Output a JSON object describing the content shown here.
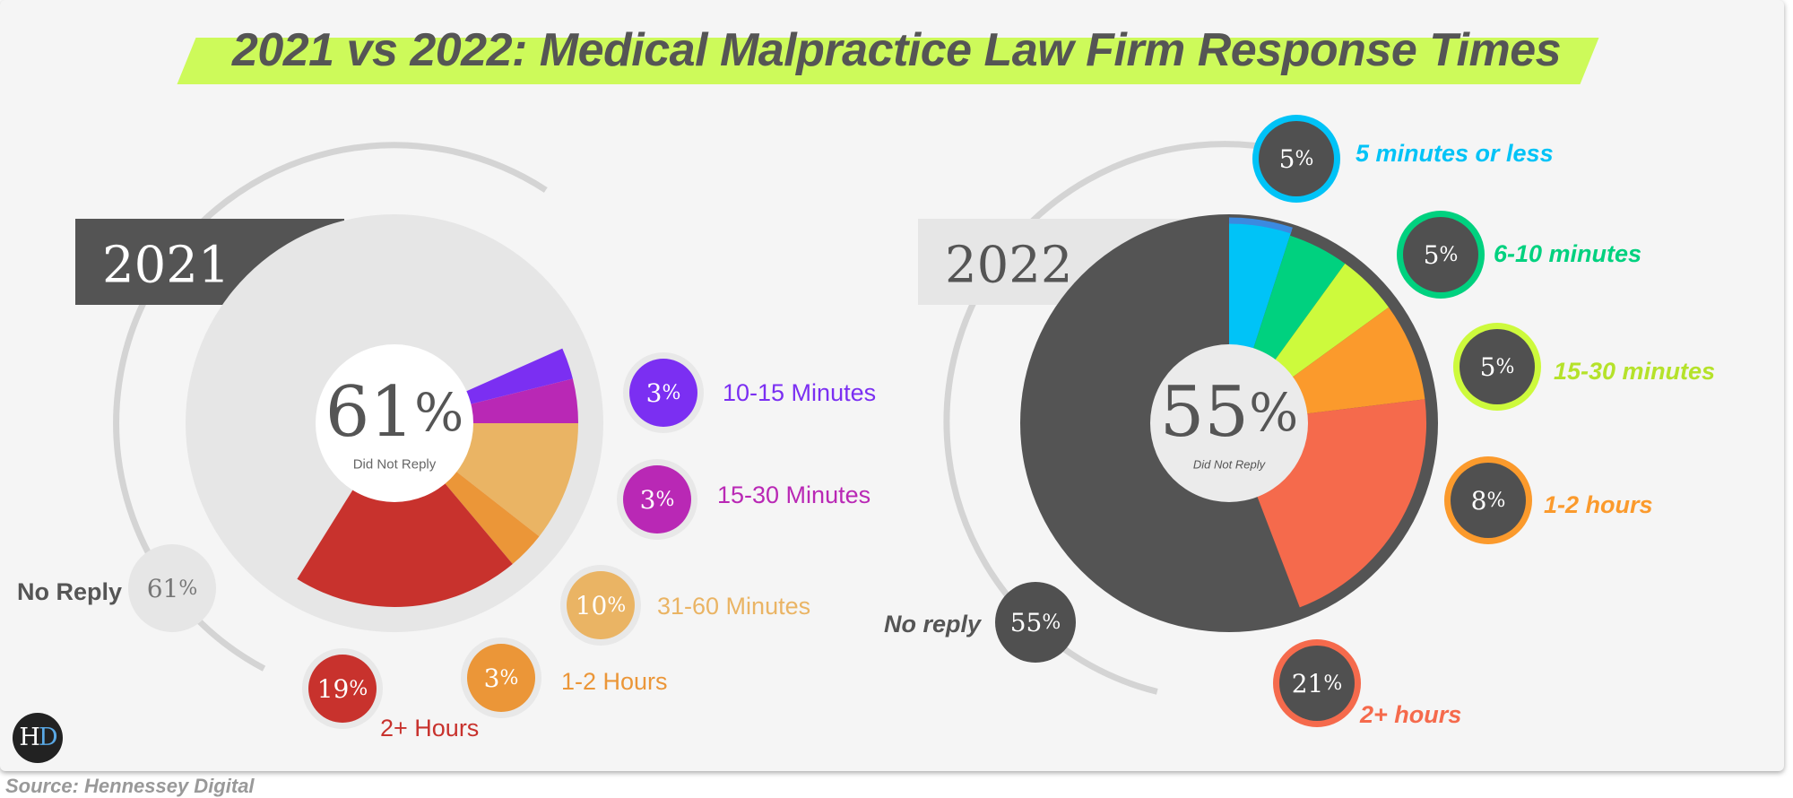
{
  "title": "2021 vs 2022: Medical Malpractice Law Firm Response Times",
  "source": "Source: Hennessey Digital",
  "logo": {
    "text_h": "H",
    "text_d": "D"
  },
  "chart_data": [
    {
      "type": "pie",
      "year": "2021",
      "center_value": "61",
      "center_unit": "%",
      "center_label": "Did Not Reply",
      "slices": [
        {
          "label": "No Reply",
          "value": 61,
          "display": "61",
          "color": "#e6e6e6",
          "badge_text": "#777777",
          "label_color": "#555555",
          "label_style": "normal"
        },
        {
          "label": "10-15 Minutes",
          "value": 3,
          "display": "3",
          "color": "#7b2ff2",
          "badge_text": "#ffffff",
          "label_color": "#7b2ff2",
          "label_style": "normal"
        },
        {
          "label": "15-30 Minutes",
          "value": 3,
          "display": "3",
          "color": "#b928b5",
          "badge_text": "#ffffff",
          "label_color": "#b928b5",
          "label_style": "normal"
        },
        {
          "label": "31-60 Minutes",
          "value": 10,
          "display": "10",
          "color": "#eab464",
          "badge_text": "#ffffff",
          "label_color": "#eab464",
          "label_style": "normal"
        },
        {
          "label": "1-2 Hours",
          "value": 3,
          "display": "3",
          "color": "#eb9638",
          "badge_text": "#ffffff",
          "label_color": "#eb9638",
          "label_style": "normal"
        },
        {
          "label": "2+ Hours",
          "value": 19,
          "display": "19",
          "color": "#c8322d",
          "badge_text": "#ffffff",
          "label_color": "#c8322d",
          "label_style": "normal"
        }
      ]
    },
    {
      "type": "pie",
      "year": "2022",
      "center_value": "55",
      "center_unit": "%",
      "center_label": "Did Not Reply",
      "slices": [
        {
          "label": "5 minutes or less",
          "value": 5,
          "display": "5",
          "color": "#00c3f7",
          "badge_text": "#ffffff",
          "label_color": "#00c3f7",
          "label_style": "italic"
        },
        {
          "label": "6-10 minutes",
          "value": 5,
          "display": "5",
          "color": "#00d17f",
          "badge_text": "#ffffff",
          "label_color": "#00d17f",
          "label_style": "italic"
        },
        {
          "label": "15-30 minutes",
          "value": 5,
          "display": "5",
          "color": "#cdfa3c",
          "badge_text": "#ffffff",
          "label_color": "#b5e22a",
          "label_style": "italic"
        },
        {
          "label": "1-2 hours",
          "value": 8,
          "display": "8",
          "color": "#fb9a2c",
          "badge_text": "#ffffff",
          "label_color": "#fb9a2c",
          "label_style": "italic"
        },
        {
          "label": "2+ hours",
          "value": 21,
          "display": "21",
          "color": "#f56a4c",
          "badge_text": "#ffffff",
          "label_color": "#f56a4c",
          "label_style": "italic"
        },
        {
          "label": "No reply",
          "value": 55,
          "display": "55",
          "color": "#545454",
          "badge_text": "#ffffff",
          "label_color": "#555555",
          "label_style": "italic"
        }
      ]
    }
  ]
}
